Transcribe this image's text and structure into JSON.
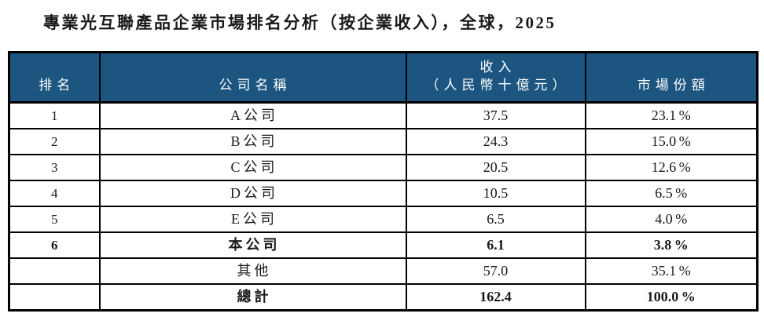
{
  "title": "專業光互聯產品企業市場排名分析（按企業收入），全球，2025",
  "colors": {
    "header_background": "#1B5580",
    "header_text": "#FFFFFF",
    "border": "#000000",
    "body_text": "#1A1A1A",
    "page_background": "#FFFFFF"
  },
  "table": {
    "headers": {
      "rank": "排名",
      "company": "公司名稱",
      "revenue_line1": "收入",
      "revenue_line2": "（人民幣十億元）",
      "share": "市場份額"
    },
    "rows": [
      {
        "rank": "1",
        "company": "A公司",
        "revenue": "37.5",
        "share": "23.1 %"
      },
      {
        "rank": "2",
        "company": "B公司",
        "revenue": "24.3",
        "share": "15.0 %"
      },
      {
        "rank": "3",
        "company": "C公司",
        "revenue": "20.5",
        "share": "12.6 %"
      },
      {
        "rank": "4",
        "company": "D公司",
        "revenue": "10.5",
        "share": "6.5 %"
      },
      {
        "rank": "5",
        "company": "E公司",
        "revenue": "6.5",
        "share": "4.0 %"
      },
      {
        "rank": "6",
        "company": "本公司",
        "revenue": "6.1",
        "share": "3.8 %"
      },
      {
        "rank": "",
        "company": "其他",
        "revenue": "57.0",
        "share": "35.1 %"
      },
      {
        "rank": "",
        "company": "總計",
        "revenue": "162.4",
        "share": "100.0 %"
      }
    ]
  }
}
